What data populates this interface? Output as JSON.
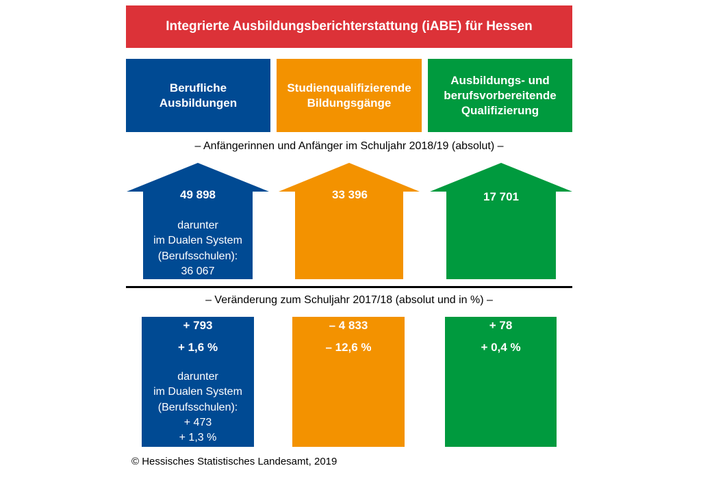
{
  "title": "Integrierte Ausbildungsberichterstattung (iABE) für Hessen",
  "colors": {
    "red": "#dc3238",
    "blue": "#004a93",
    "orange": "#f39200",
    "green": "#009a3e"
  },
  "categories": [
    {
      "label": "Berufliche\nAusbildungen",
      "color": "#004a93",
      "value": "49 898",
      "detail": [
        "darunter",
        "im Dualen System",
        "(Berufsschulen):",
        "36 067"
      ],
      "change_abs": "+ 793",
      "change_pct": "+ 1,6 %",
      "change_detail": [
        "darunter",
        "im Dualen System",
        "(Berufsschulen):",
        "+ 473",
        "+ 1,3 %"
      ]
    },
    {
      "label": "Studienqualifizierende\nBildungsgänge",
      "color": "#f39200",
      "value": "33 396",
      "change_abs": "– 4 833",
      "change_pct": "– 12,6 %"
    },
    {
      "label": "Ausbildungs- und\nberufsvorbereitende\nQualifizierung",
      "color": "#009a3e",
      "value": "17 701",
      "change_abs": "+ 78",
      "change_pct": "+ 0,4 %"
    }
  ],
  "section1": "– Anfängerinnen und Anfänger im Schuljahr 2018/19 (absolut) –",
  "section2": "– Veränderung zum Schuljahr 2017/18 (absolut und in %) –",
  "footer": "© Hessisches Statistisches Landesamt, 2019"
}
